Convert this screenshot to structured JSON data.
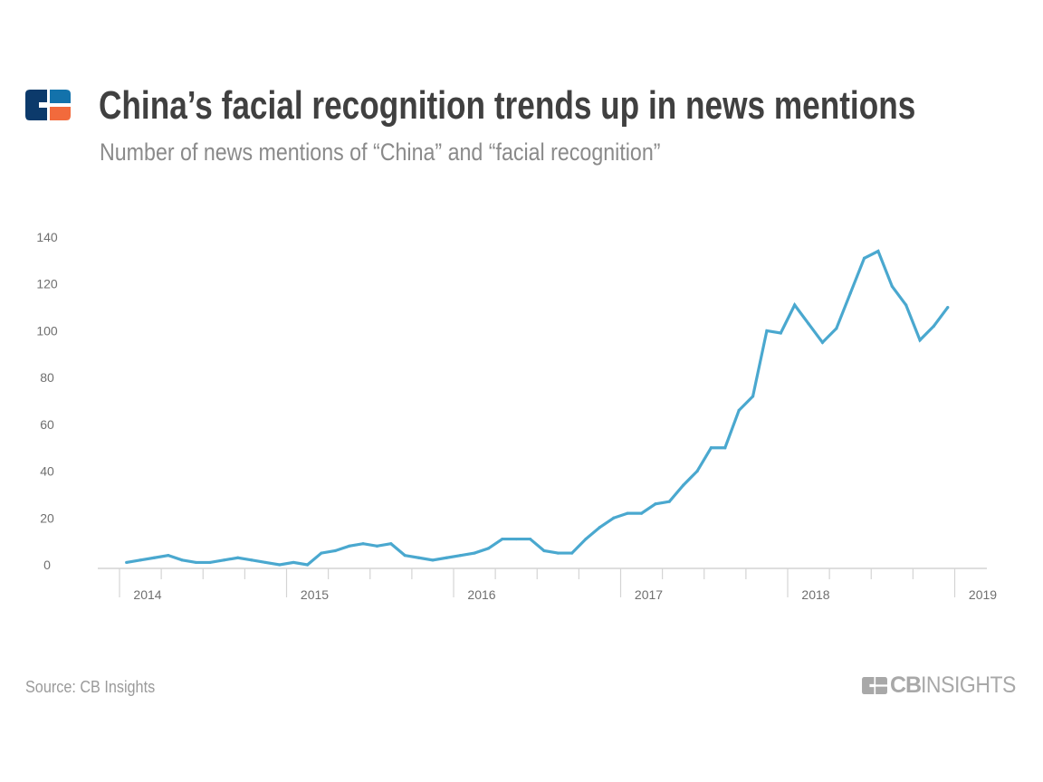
{
  "header": {
    "logo_icon": "cb-insights-logo-icon",
    "title": "China’s facial recognition trends up in news mentions",
    "subtitle": "Number of news mentions of “China” and “facial recognition”"
  },
  "footer": {
    "source": "Source: CB Insights",
    "brand_bold": "CB",
    "brand_light": "INSIGHTS"
  },
  "colors": {
    "line": "#4aa8cf",
    "title": "#404040",
    "subtitle": "#8a8a8a",
    "axis": "#d4d4d4",
    "logo_navy": "#0c3a6b",
    "logo_blue": "#1372ab",
    "logo_orange": "#f26a3c"
  },
  "chart_data": {
    "type": "line",
    "title": "China’s facial recognition trends up in news mentions",
    "subtitle": "Number of news mentions of “China” and “facial recognition”",
    "xlabel": "",
    "ylabel": "",
    "ylim": [
      0,
      140
    ],
    "yticks": [
      0,
      20,
      40,
      60,
      80,
      100,
      120,
      140
    ],
    "xticks": [
      "2014",
      "2015",
      "2016",
      "2017",
      "2018",
      "2019"
    ],
    "xrange": [
      "2014-01",
      "2019-03"
    ],
    "grid": false,
    "legend": "none",
    "series": [
      {
        "name": "News mentions",
        "x": [
          "2014-01",
          "2014-02",
          "2014-03",
          "2014-04",
          "2014-05",
          "2014-06",
          "2014-07",
          "2014-08",
          "2014-09",
          "2014-10",
          "2014-11",
          "2014-12",
          "2015-01",
          "2015-02",
          "2015-03",
          "2015-04",
          "2015-05",
          "2015-06",
          "2015-07",
          "2015-08",
          "2015-09",
          "2015-10",
          "2015-11",
          "2015-12",
          "2016-01",
          "2016-02",
          "2016-03",
          "2016-04",
          "2016-05",
          "2016-06",
          "2016-07",
          "2016-08",
          "2016-09",
          "2016-10",
          "2016-11",
          "2016-12",
          "2017-01",
          "2017-02",
          "2017-03",
          "2017-04",
          "2017-05",
          "2017-06",
          "2017-07",
          "2017-08",
          "2017-09",
          "2017-10",
          "2017-11",
          "2017-12",
          "2018-01",
          "2018-02",
          "2018-03",
          "2018-04",
          "2018-05",
          "2018-06",
          "2018-07",
          "2018-08",
          "2018-09",
          "2018-10",
          "2018-11",
          "2018-12"
        ],
        "values": [
          1,
          2,
          3,
          4,
          2,
          1,
          1,
          2,
          3,
          2,
          1,
          0,
          1,
          0,
          5,
          6,
          8,
          9,
          8,
          9,
          4,
          3,
          2,
          3,
          4,
          5,
          7,
          11,
          11,
          11,
          6,
          5,
          5,
          11,
          16,
          20,
          22,
          22,
          26,
          27,
          34,
          40,
          50,
          50,
          66,
          72,
          100,
          99,
          111,
          103,
          95,
          101,
          116,
          131,
          134,
          119,
          111,
          96,
          102,
          110
        ]
      }
    ]
  }
}
